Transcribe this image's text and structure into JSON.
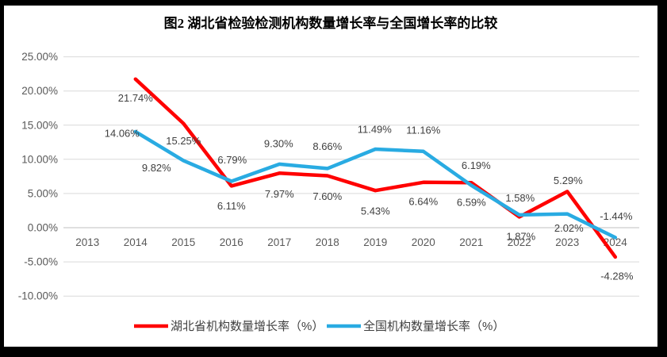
{
  "chart_data": {
    "type": "line",
    "title": "图2  湖北省检验检测机构数量增长率与全国增长率的比较",
    "categories": [
      "2013",
      "2014",
      "2015",
      "2016",
      "2017",
      "2018",
      "2019",
      "2020",
      "2021",
      "2022",
      "2023",
      "2024"
    ],
    "series": [
      {
        "name": "湖北省机构数量增长率（%）",
        "color": "#ff0000",
        "values": [
          null,
          21.74,
          15.25,
          6.11,
          7.97,
          7.6,
          5.43,
          6.64,
          6.59,
          1.58,
          5.29,
          -4.28
        ],
        "labels": [
          "",
          "21.74%",
          "15.25%",
          "6.11%",
          "7.97%",
          "7.60%",
          "5.43%",
          "6.64%",
          "6.59%",
          "1.58%",
          "5.29%",
          "-4.28%"
        ],
        "label_offsets": [
          [
            0,
            0
          ],
          [
            0,
            24
          ],
          [
            0,
            22
          ],
          [
            0,
            25
          ],
          [
            0,
            26
          ],
          [
            0,
            26
          ],
          [
            0,
            26
          ],
          [
            0,
            24
          ],
          [
            0,
            25
          ],
          [
            1,
            -24
          ],
          [
            1,
            -14
          ],
          [
            2,
            24
          ]
        ]
      },
      {
        "name": "全国机构数量增长率（%）",
        "color": "#29abe2",
        "values": [
          null,
          14.06,
          9.82,
          6.79,
          9.3,
          8.66,
          11.49,
          11.16,
          6.19,
          1.87,
          2.02,
          -1.44
        ],
        "labels": [
          "",
          "14.06%",
          "9.82%",
          "6.79%",
          "9.30%",
          "8.66%",
          "11.49%",
          "11.16%",
          "6.19%",
          "1.87%",
          "2.02%",
          "-1.44%"
        ],
        "label_offsets": [
          [
            0,
            0
          ],
          [
            -17,
            2
          ],
          [
            -34,
            9
          ],
          [
            1,
            -27
          ],
          [
            -1,
            -26
          ],
          [
            0,
            -28
          ],
          [
            -1,
            -25
          ],
          [
            0,
            -27
          ],
          [
            6,
            -25
          ],
          [
            2,
            27
          ],
          [
            2,
            18
          ],
          [
            1,
            -27
          ]
        ]
      }
    ],
    "y_axis": {
      "tick_labels": [
        "25.00%",
        "20.00%",
        "15.00%",
        "10.00%",
        "5.00%",
        "0.00%",
        "-5.00%",
        "-10.00%"
      ],
      "tick_values": [
        25,
        20,
        15,
        10,
        5,
        0,
        -5,
        -10
      ],
      "min": -10,
      "max": 25
    },
    "grid": true,
    "legend_position": "bottom",
    "colors": {
      "grid_line": "#d9d9d9",
      "zero_axis_line": "#bfbfbf",
      "tick_text": "#595959",
      "data_label_text": "#404040",
      "title_text": "#000000",
      "frame": "#000000",
      "background": "#ffffff"
    }
  }
}
